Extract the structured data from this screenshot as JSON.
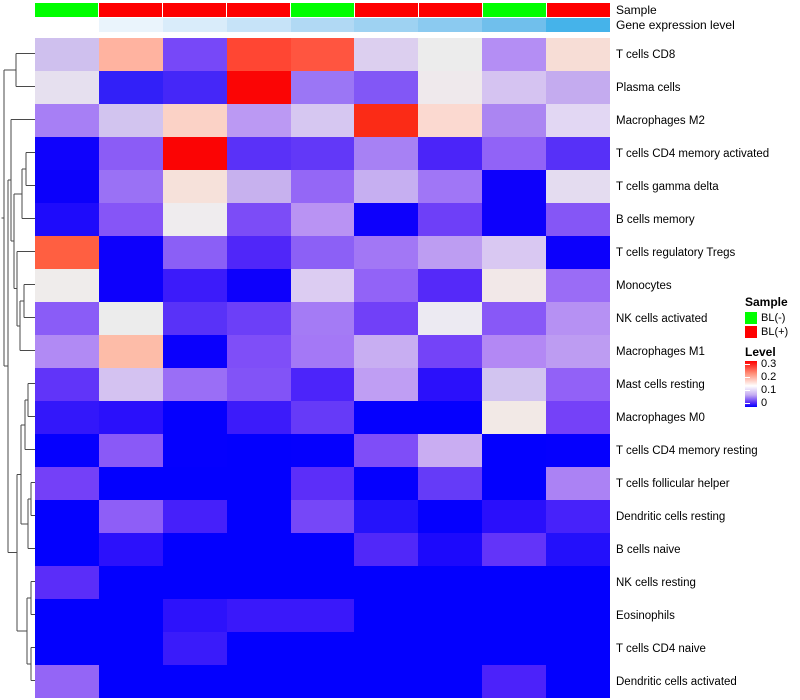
{
  "annotations": {
    "sample_label": "Sample",
    "gene_label": "Gene expression level"
  },
  "legend": {
    "sample_title": "Sample",
    "sample_items": [
      {
        "label": "BL(-)",
        "color": "#00fe00"
      },
      {
        "label": "BL(+)",
        "color": "#fe0000"
      }
    ],
    "level_title": "Level",
    "level_ticks": [
      "0.3",
      "0.2",
      "0.1",
      "0"
    ]
  },
  "chart_data": {
    "type": "heatmap",
    "n_samples": 9,
    "row_labels": [
      "T cells CD8",
      "Plasma cells",
      "Macrophages M2",
      "T cells CD4 memory activated",
      "T cells gamma delta",
      "B cells memory",
      "T cells regulatory  Tregs",
      "Monocytes",
      "NK cells activated",
      "Macrophages M1",
      "Mast cells resting",
      "Macrophages M0",
      "T cells CD4 memory resting",
      "T cells follicular helper",
      "Dendritic cells resting",
      "B cells naive",
      "NK cells resting",
      "Eosinophils",
      "T cells CD4 naive",
      "Dendritic cells activated"
    ],
    "column_annotations": {
      "sample": {
        "label": "Sample",
        "values": [
          "BL(-)",
          "BL(+)",
          "BL(+)",
          "BL(+)",
          "BL(-)",
          "BL(+)",
          "BL(+)",
          "BL(-)",
          "BL(+)"
        ],
        "color_map": {
          "BL(-)": "#00fe00",
          "BL(+)": "#fe0000"
        }
      },
      "gene_expression_level": {
        "label": "Gene expression level",
        "colors": [
          "#ffffff",
          "#eaf4fc",
          "#d9ecfa",
          "#c6e3f8",
          "#b1d9f4",
          "#9ed2f2",
          "#8bcaf0",
          "#70bfec",
          "#45b3ea"
        ]
      }
    },
    "colormap": {
      "0": "#0000fe",
      "0.15": "#ffffff",
      "0.3": "#fe0000"
    },
    "legend_position": "right",
    "values_estimated": [
      [
        0.12,
        0.19,
        0.07,
        0.26,
        0.25,
        0.13,
        0.15,
        0.11,
        0.17
      ],
      [
        0.14,
        0.03,
        0.04,
        0.3,
        0.09,
        0.08,
        0.15,
        0.13,
        0.12
      ],
      [
        0.1,
        0.12,
        0.18,
        0.11,
        0.13,
        0.28,
        0.17,
        0.1,
        0.13
      ],
      [
        0.01,
        0.08,
        0.3,
        0.05,
        0.06,
        0.1,
        0.04,
        0.09,
        0.05
      ],
      [
        0.01,
        0.09,
        0.16,
        0.12,
        0.09,
        0.12,
        0.09,
        0.01,
        0.13
      ],
      [
        0.02,
        0.08,
        0.15,
        0.07,
        0.11,
        0.01,
        0.06,
        0.01,
        0.08
      ],
      [
        0.24,
        0.01,
        0.08,
        0.05,
        0.08,
        0.1,
        0.11,
        0.13,
        0.01
      ],
      [
        0.15,
        0.01,
        0.04,
        0.01,
        0.13,
        0.09,
        0.05,
        0.15,
        0.09
      ],
      [
        0.08,
        0.15,
        0.05,
        0.06,
        0.1,
        0.07,
        0.14,
        0.08,
        0.11
      ],
      [
        0.1,
        0.19,
        0.01,
        0.07,
        0.1,
        0.12,
        0.07,
        0.11,
        0.11
      ],
      [
        0.06,
        0.12,
        0.09,
        0.08,
        0.04,
        0.11,
        0.03,
        0.12,
        0.09
      ],
      [
        0.03,
        0.02,
        0.0,
        0.04,
        0.06,
        0.0,
        0.0,
        0.15,
        0.07
      ],
      [
        0.0,
        0.08,
        0.0,
        0.0,
        0.0,
        0.07,
        0.12,
        0.0,
        0.0
      ],
      [
        0.07,
        0.0,
        0.0,
        0.0,
        0.05,
        0.0,
        0.06,
        0.0,
        0.1
      ],
      [
        0.0,
        0.08,
        0.04,
        0.0,
        0.07,
        0.02,
        0.0,
        0.02,
        0.04
      ],
      [
        0.0,
        0.03,
        0.0,
        0.0,
        0.0,
        0.05,
        0.02,
        0.06,
        0.02
      ],
      [
        0.05,
        0.0,
        0.0,
        0.0,
        0.0,
        0.0,
        0.0,
        0.0,
        0.0
      ],
      [
        0.0,
        0.0,
        0.03,
        0.03,
        0.03,
        0.0,
        0.0,
        0.0,
        0.0
      ],
      [
        0.0,
        0.0,
        0.03,
        0.0,
        0.0,
        0.0,
        0.0,
        0.0,
        0.0
      ],
      [
        0.09,
        0.0,
        0.0,
        0.0,
        0.0,
        0.0,
        0.0,
        0.04,
        0.0
      ]
    ],
    "cell_colors": [
      [
        "#cfc0ee",
        "#ffb3a0",
        "#7748f8",
        "#ff4633",
        "#ff5540",
        "#dccfef",
        "#ececec",
        "#b48ef4",
        "#f7ddd6"
      ],
      [
        "#e6e0ef",
        "#3220f8",
        "#4527f8",
        "#fb0505",
        "#9b76f5",
        "#8257f6",
        "#efe9ec",
        "#d5c3f1",
        "#c4abef"
      ],
      [
        "#a77ff5",
        "#d2c4ef",
        "#fbd2c6",
        "#bb99f3",
        "#d6c7f1",
        "#fb2b16",
        "#fbd9d0",
        "#ab85f2",
        "#e2d7f3"
      ],
      [
        "#0f02fc",
        "#8b5cf6",
        "#fb0404",
        "#5a31f8",
        "#6238f8",
        "#a781f4",
        "#4b24f9",
        "#9163f7",
        "#5730f8"
      ],
      [
        "#0b00fb",
        "#9a71f5",
        "#f6e1da",
        "#c7b1ee",
        "#9467f6",
        "#c6aff1",
        "#a076f6",
        "#0d00fc",
        "#e4dcf0"
      ],
      [
        "#1e0bfb",
        "#8655f7",
        "#efecee",
        "#7c4cf7",
        "#b993f3",
        "#0d00fc",
        "#6e3ff8",
        "#0d00fc",
        "#8556f6"
      ],
      [
        "#ff5f41",
        "#0d00fc",
        "#8b5ff6",
        "#5026f9",
        "#8c60f6",
        "#a277f5",
        "#bd9df2",
        "#d9c8f2",
        "#0c00fc"
      ],
      [
        "#efeceb",
        "#0d00fc",
        "#3c1bfa",
        "#0d00fc",
        "#dcccf2",
        "#9263f7",
        "#5529f9",
        "#f2e8e8",
        "#9a6cf6"
      ],
      [
        "#8a5cf7",
        "#ececec",
        "#5932f8",
        "#6c3ff8",
        "#a47bf5",
        "#7140f8",
        "#eceaf2",
        "#8858f7",
        "#b691f3"
      ],
      [
        "#b18af4",
        "#fdbca8",
        "#0a00fd",
        "#7f4ef8",
        "#a478f6",
        "#c8aef2",
        "#7443f8",
        "#b388f4",
        "#bd9cf2"
      ],
      [
        "#6134f9",
        "#d4c2f1",
        "#9a6ef6",
        "#8253f7",
        "#4c24fa",
        "#bf9ef3",
        "#2b10fb",
        "#d2c4f0",
        "#9261f7"
      ],
      [
        "#3317fa",
        "#2a10fb",
        "#0500fe",
        "#3c1bfa",
        "#663af8",
        "#0500fe",
        "#0500fe",
        "#f2e9e6",
        "#7541f8"
      ],
      [
        "#0500fe",
        "#8a59f7",
        "#0500fe",
        "#0300fe",
        "#0500fe",
        "#7f4df8",
        "#c9adf2",
        "#0300fe",
        "#0500fe"
      ],
      [
        "#7440f8",
        "#0300fe",
        "#0300fe",
        "#0300fe",
        "#5c2ef9",
        "#0500fe",
        "#653bf8",
        "#0300fe",
        "#ab82f4"
      ],
      [
        "#0300fe",
        "#8e5ef7",
        "#4620fa",
        "#0300fe",
        "#7647f8",
        "#2513fb",
        "#0500fe",
        "#2a0ffb",
        "#4722fa"
      ],
      [
        "#0300fe",
        "#2c11fb",
        "#0300fe",
        "#0300fe",
        "#0300fe",
        "#5128f9",
        "#1c09fc",
        "#6334f9",
        "#2310fb"
      ],
      [
        "#5b2df9",
        "#0300fe",
        "#0300fe",
        "#0300fe",
        "#0300fe",
        "#0300fe",
        "#0300fe",
        "#0300fe",
        "#0300fe"
      ],
      [
        "#0300fe",
        "#0300fe",
        "#2d12fb",
        "#3a18fa",
        "#3a18fa",
        "#0300fe",
        "#0300fe",
        "#0300fe",
        "#0300fe"
      ],
      [
        "#0300fe",
        "#0300fe",
        "#3a1bfa",
        "#0300fe",
        "#0300fe",
        "#0300fe",
        "#0300fe",
        "#0300fe",
        "#0300fe"
      ],
      [
        "#9465f6",
        "#0300fe",
        "#0300fe",
        "#0300fe",
        "#0300fe",
        "#0300fe",
        "#0300fe",
        "#4c22fa",
        "#0300fe"
      ]
    ]
  }
}
